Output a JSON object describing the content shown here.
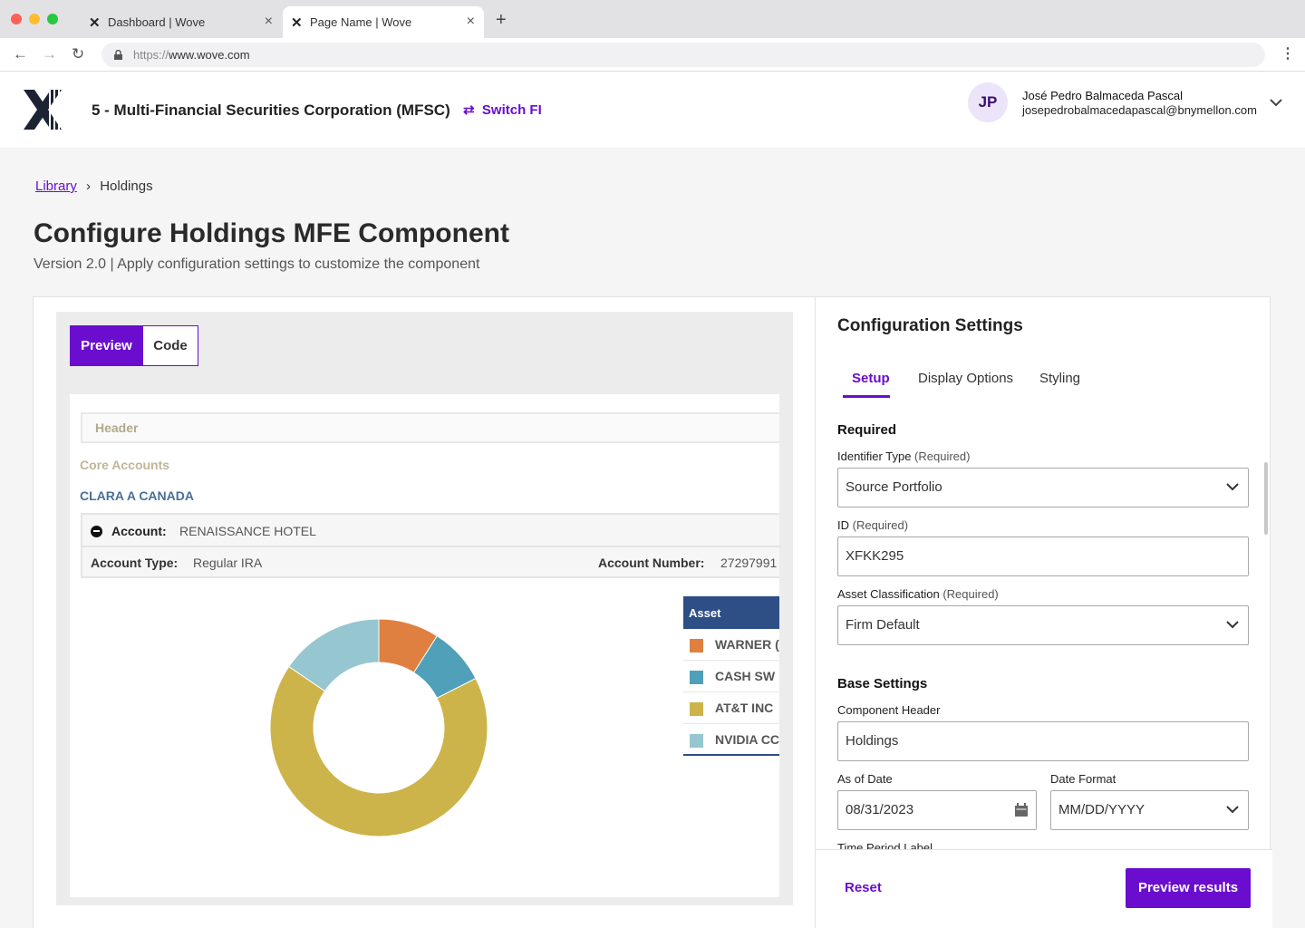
{
  "browser": {
    "tabs": [
      {
        "label": "Dashboard | Wove"
      },
      {
        "label": "Page Name | Wove"
      }
    ],
    "url_prefix": "https://",
    "url_domain": "www.wove.com"
  },
  "header": {
    "org_name": "5 - Multi-Financial Securities Corporation (MFSC)",
    "switch_label": "Switch FI",
    "user_initials": "JP",
    "user_name": "José Pedro Balmaceda Pascal",
    "user_email": "josepedrobalmacedapascal@bnymellon.com"
  },
  "breadcrumb": {
    "library": "Library",
    "current": "Holdings"
  },
  "page": {
    "title": "Configure Holdings MFE Component",
    "subtitle": "Version 2.0 | Apply configuration settings to customize the component"
  },
  "preview_panel": {
    "tab_preview": "Preview",
    "tab_code": "Code",
    "mock": {
      "header": "Header",
      "section": "Core Accounts",
      "client": "CLARA A CANADA",
      "account_label": "Account:",
      "account_value": "RENAISSANCE HOTEL",
      "account_type_label": "Account Type:",
      "account_type_value": "Regular IRA",
      "account_number_label": "Account Number:",
      "account_number_value": "27297991",
      "legend_header": "Asset",
      "legend": [
        {
          "label": "WARNER (",
          "color": "#df8040"
        },
        {
          "label": "CASH SW",
          "color": "#4fa0b8"
        },
        {
          "label": "AT&T INC",
          "color": "#cdb44a"
        },
        {
          "label": "NVIDIA CC",
          "color": "#96c6cf"
        }
      ],
      "donut_fractions": [
        0.09,
        0.085,
        0.67,
        0.155
      ]
    }
  },
  "config": {
    "title": "Configuration Settings",
    "tabs": [
      "Setup",
      "Display Options",
      "Styling"
    ],
    "required_heading": "Required",
    "identifier_label": "Identifier Type",
    "identifier_req": "(Required)",
    "identifier_value": "Source Portfolio",
    "id_label": "ID",
    "id_req": "(Required)",
    "id_value": "XFKK295",
    "asset_label": "Asset Classification",
    "asset_req": "(Required)",
    "asset_value": "Firm Default",
    "base_heading": "Base Settings",
    "component_header_label": "Component Header",
    "component_header_value": "Holdings",
    "as_of_label": "As of Date",
    "as_of_value": "08/31/2023",
    "date_format_label": "Date Format",
    "date_format_value": "MM/DD/YYYY",
    "time_period_label": "Time Period Label",
    "reset_label": "Reset",
    "preview_results_label": "Preview results"
  },
  "colors": {
    "accent": "#6a0dcf"
  }
}
